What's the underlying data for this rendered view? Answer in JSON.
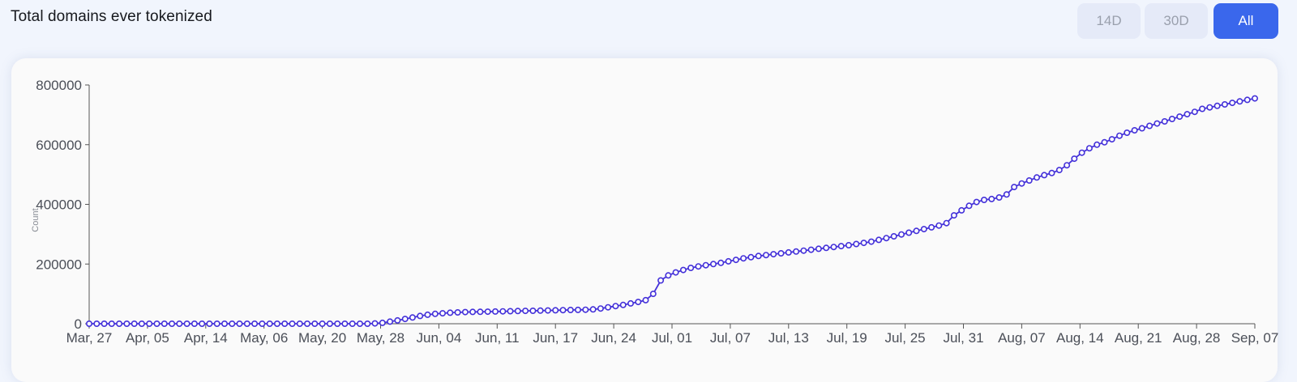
{
  "header": {
    "title": "Total domains ever tokenized"
  },
  "range_buttons": [
    {
      "label": "14D",
      "active": false
    },
    {
      "label": "30D",
      "active": false
    },
    {
      "label": "All",
      "active": true
    }
  ],
  "colors": {
    "accent": "#3a67ec",
    "series": "#4431d9",
    "background": "#f1f5fd",
    "card": "#fafafa"
  },
  "chart_data": {
    "type": "line",
    "title": "",
    "xlabel": "",
    "ylabel": "Count",
    "ylim": [
      0,
      800000
    ],
    "yticks": [
      0,
      200000,
      400000,
      600000,
      800000
    ],
    "ytick_labels": [
      "0",
      "200000",
      "400000",
      "600000",
      "800000"
    ],
    "xtick_labels": [
      "Mar, 27",
      "Apr, 05",
      "Apr, 14",
      "May, 06",
      "May, 20",
      "May, 28",
      "Jun, 04",
      "Jun, 11",
      "Jun, 17",
      "Jun, 24",
      "Jul, 01",
      "Jul, 07",
      "Jul, 13",
      "Jul, 19",
      "Jul, 25",
      "Jul, 31",
      "Aug, 07",
      "Aug, 14",
      "Aug, 21",
      "Aug, 28",
      "Sep, 07"
    ],
    "grid": false,
    "markers": "hollow-circle",
    "series": [
      {
        "values": [
          0,
          0,
          0,
          0,
          0,
          0,
          0,
          0,
          0,
          0,
          0,
          0,
          0,
          0,
          0,
          0,
          0,
          0,
          0,
          0,
          0,
          0,
          0,
          0,
          0,
          0,
          0,
          0,
          0,
          0,
          0,
          0,
          0,
          0,
          0,
          0,
          0,
          0,
          1000,
          3000,
          7000,
          11000,
          16000,
          21000,
          26000,
          30000,
          33000,
          35000,
          37000,
          38000,
          39000,
          39500,
          40000,
          40500,
          41000,
          41500,
          42000,
          42500,
          43000,
          43500,
          44000,
          44500,
          45000,
          45500,
          46000,
          46500,
          47000,
          48000,
          51000,
          55000,
          59000,
          63000,
          68000,
          73000,
          79000,
          100000,
          145000,
          162000,
          172000,
          180000,
          187000,
          192000,
          196000,
          200000,
          204000,
          209000,
          214000,
          219000,
          223000,
          227000,
          230000,
          233000,
          236000,
          239000,
          242000,
          245000,
          248000,
          251000,
          254000,
          257000,
          260000,
          263000,
          267000,
          271000,
          275000,
          281000,
          287000,
          293000,
          299000,
          305000,
          311000,
          317000,
          323000,
          329000,
          337000,
          363000,
          380000,
          395000,
          408000,
          415000,
          418000,
          423000,
          433000,
          458000,
          470000,
          480000,
          490000,
          498000,
          505000,
          515000,
          531000,
          553000,
          573000,
          588000,
          600000,
          608000,
          618000,
          630000,
          640000,
          648000,
          655000,
          663000,
          671000,
          678000,
          686000,
          694000,
          702000,
          710000,
          720000,
          725000,
          730000,
          735000,
          740000,
          745000,
          750000,
          755000
        ]
      }
    ]
  }
}
